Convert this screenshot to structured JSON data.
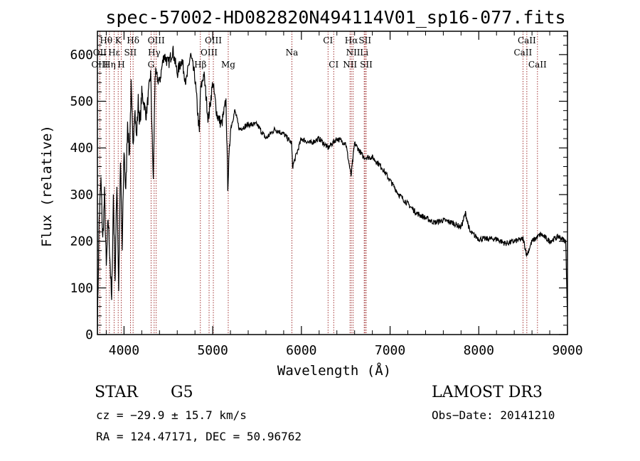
{
  "chart_data": {
    "type": "line",
    "title": "spec-57002-HD082820N494114V01_sp16-077.fits",
    "xlabel": "Wavelength (Å)",
    "ylabel": "Flux (relative)",
    "xlim": [
      3700,
      9000
    ],
    "ylim": [
      0,
      650
    ],
    "xticks": [
      4000,
      5000,
      6000,
      7000,
      8000,
      9000
    ],
    "yticks": [
      0,
      100,
      200,
      300,
      400,
      500,
      600
    ],
    "series": [
      {
        "name": "spectrum",
        "x": [
          3700,
          3720,
          3740,
          3760,
          3780,
          3800,
          3820,
          3840,
          3860,
          3880,
          3900,
          3920,
          3940,
          3960,
          3980,
          4000,
          4020,
          4040,
          4060,
          4080,
          4100,
          4120,
          4140,
          4160,
          4180,
          4200,
          4250,
          4300,
          4330,
          4350,
          4400,
          4450,
          4500,
          4550,
          4600,
          4650,
          4700,
          4750,
          4800,
          4850,
          4860,
          4900,
          4950,
          5000,
          5050,
          5100,
          5150,
          5170,
          5200,
          5250,
          5300,
          5400,
          5500,
          5600,
          5700,
          5800,
          5890,
          5900,
          6000,
          6100,
          6200,
          6300,
          6400,
          6500,
          6560,
          6600,
          6700,
          6800,
          6900,
          7000,
          7100,
          7200,
          7300,
          7400,
          7500,
          7600,
          7700,
          7800,
          7850,
          7900,
          8000,
          8100,
          8200,
          8300,
          8400,
          8500,
          8542,
          8600,
          8700,
          8800,
          8900,
          8980,
          9000
        ],
        "y": [
          10,
          250,
          330,
          200,
          300,
          140,
          250,
          170,
          65,
          300,
          120,
          330,
          100,
          370,
          180,
          400,
          300,
          460,
          380,
          530,
          400,
          490,
          420,
          500,
          450,
          520,
          470,
          560,
          330,
          560,
          540,
          600,
          580,
          610,
          560,
          590,
          540,
          600,
          550,
          430,
          520,
          560,
          460,
          540,
          470,
          450,
          500,
          320,
          440,
          480,
          440,
          450,
          450,
          420,
          440,
          430,
          410,
          360,
          420,
          410,
          420,
          400,
          420,
          410,
          340,
          410,
          380,
          380,
          360,
          330,
          300,
          280,
          260,
          250,
          240,
          245,
          240,
          230,
          260,
          220,
          205,
          205,
          205,
          195,
          200,
          205,
          170,
          200,
          215,
          200,
          210,
          200,
          40
        ]
      }
    ],
    "lines": [
      {
        "name": "Hθ",
        "x": 3798,
        "row": 1
      },
      {
        "name": "K",
        "x": 3934,
        "row": 1
      },
      {
        "name": "Hδ",
        "x": 4102,
        "row": 1
      },
      {
        "name": "OIII",
        "x": 4363,
        "row": 1
      },
      {
        "name": "OIII",
        "x": 5007,
        "row": 1
      },
      {
        "name": "CI",
        "x": 6300,
        "row": 1
      },
      {
        "name": "Hα",
        "x": 6563,
        "row": 1
      },
      {
        "name": "SII",
        "x": 6717,
        "row": 1
      },
      {
        "name": "CaII",
        "x": 8542,
        "row": 1
      },
      {
        "name": "OII",
        "x": 3727,
        "row": 2
      },
      {
        "name": "Hε",
        "x": 3889,
        "row": 2
      },
      {
        "name": "SII",
        "x": 4072,
        "row": 2
      },
      {
        "name": "Hγ",
        "x": 4340,
        "row": 2
      },
      {
        "name": "OIII",
        "x": 4959,
        "row": 2
      },
      {
        "name": "Na",
        "x": 5893,
        "row": 2
      },
      {
        "name": "NII",
        "x": 6583,
        "row": 2
      },
      {
        "name": "Li",
        "x": 6708,
        "row": 2
      },
      {
        "name": "CaII",
        "x": 8498,
        "row": 2
      },
      {
        "name": "OIII",
        "x": 3727,
        "row": 3
      },
      {
        "name": "Hη",
        "x": 3835,
        "row": 3
      },
      {
        "name": "H",
        "x": 3968,
        "row": 3
      },
      {
        "name": "G",
        "x": 4305,
        "row": 3
      },
      {
        "name": "Hβ",
        "x": 4861,
        "row": 3
      },
      {
        "name": "Mg",
        "x": 5175,
        "row": 3
      },
      {
        "name": "CI",
        "x": 6364,
        "row": 3
      },
      {
        "name": "NII",
        "x": 6548,
        "row": 3
      },
      {
        "name": "SII",
        "x": 6731,
        "row": 3
      },
      {
        "name": "CaII",
        "x": 8662,
        "row": 3
      }
    ]
  },
  "info": {
    "object_type": "STAR",
    "subclass": "G5",
    "survey": "LAMOST DR3",
    "cz": "cz = −29.9 ± 15.7 km/s",
    "obs_date": "Obs−Date: 20141210",
    "coords": "RA = 124.47171, DEC =  50.96762"
  },
  "colors": {
    "axis": "#000000",
    "spectrum": "#000000",
    "line_markers": "#8b0000"
  }
}
